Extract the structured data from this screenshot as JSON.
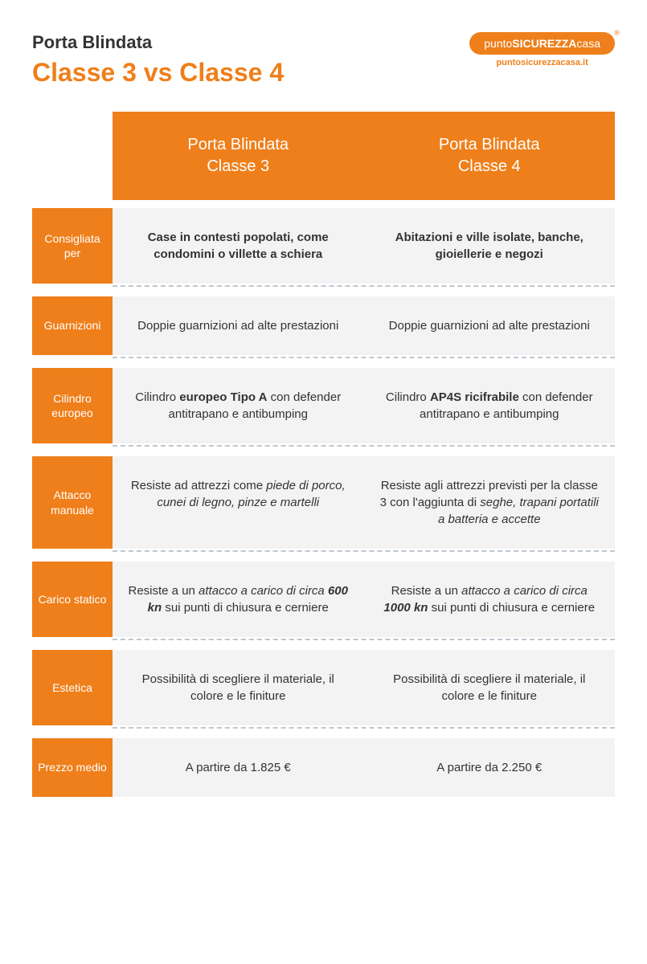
{
  "colors": {
    "orange": "#ef7f1a",
    "light_bg": "#f3f3f3",
    "dash": "#bfc7d0",
    "text": "#333333"
  },
  "header": {
    "pretitle": "Porta Blindata",
    "title": "Classe 3 vs Classe 4"
  },
  "logo": {
    "text_pre": "punto",
    "text_bold": "SICUREZZA",
    "text_post": "casa",
    "subtitle": "puntosicurezzacasa.it"
  },
  "columns": [
    "Porta Blindata\nClasse 3",
    "Porta Blindata\nClasse 4"
  ],
  "rows": [
    {
      "label": "Consigliata per",
      "bold": true,
      "c1": "Case in contesti popolati, come condomini o villette a schiera",
      "c2": "Abitazioni e ville isolate, banche, gioiellerie e negozi"
    },
    {
      "label": "Guarnizioni",
      "c1": "Doppie guarnizioni ad alte prestazioni",
      "c2": "Doppie guarnizioni ad alte prestazioni"
    },
    {
      "label": "Cilindro europeo",
      "c1_html": "Cilindro <b>europeo Tipo A</b> con defender antitrapano e antibumping",
      "c2_html": "Cilindro <b>AP4S ricifrabile</b> con defender antitrapano e antibumping"
    },
    {
      "label": "Attacco manuale",
      "c1_html": "Resiste ad attrezzi come <em>piede di porco, cunei di legno, pinze e martelli</em>",
      "c2_html": "Resiste agli attrezzi previsti per la classe 3 con l'aggiunta di <em>seghe, trapani portatili a batteria e accette</em>"
    },
    {
      "label": "Carico statico",
      "c1_html": "Resiste a un <em>attacco a carico di circa <b>600 kn</b></em> sui punti di chiusura e cerniere",
      "c2_html": "Resiste a un <em>attacco a carico di circa <b>1000 kn</b></em> sui punti di chiusura e cerniere"
    },
    {
      "label": "Estetica",
      "c1": "Possibilità di scegliere il materiale, il colore e le finiture",
      "c2": "Possibilità di scegliere il materiale, il colore e le finiture"
    },
    {
      "label": "Prezzo medio",
      "c1": "A partire da 1.825 €",
      "c2": "A partire da 2.250 €"
    }
  ]
}
